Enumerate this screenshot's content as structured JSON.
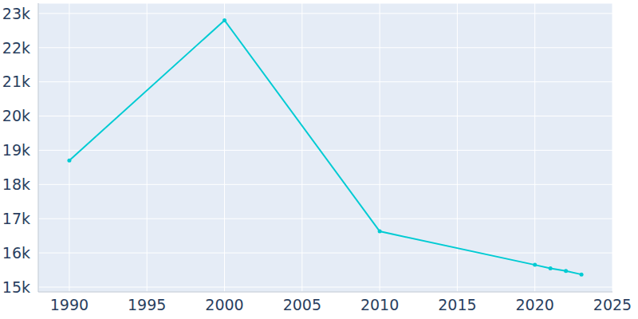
{
  "chart_data": {
    "type": "line",
    "x": [
      1990,
      2000,
      2010,
      2020,
      2021,
      2022,
      2023
    ],
    "values": [
      18700,
      22800,
      16630,
      15650,
      15550,
      15470,
      15370
    ],
    "color": "#00cbd3",
    "marker": "circle",
    "xlim": [
      1988,
      2025
    ],
    "xticks": [
      1990,
      1995,
      2000,
      2005,
      2010,
      2015,
      2020,
      2025
    ],
    "ylim": [
      14860,
      23300
    ],
    "yticks": [
      {
        "value": 15000,
        "label": "15k"
      },
      {
        "value": 16000,
        "label": "16k"
      },
      {
        "value": 17000,
        "label": "17k"
      },
      {
        "value": 18000,
        "label": "18k"
      },
      {
        "value": 19000,
        "label": "19k"
      },
      {
        "value": 20000,
        "label": "20k"
      },
      {
        "value": 21000,
        "label": "21k"
      },
      {
        "value": 22000,
        "label": "22k"
      },
      {
        "value": 23000,
        "label": "23k"
      }
    ],
    "grid": true
  }
}
